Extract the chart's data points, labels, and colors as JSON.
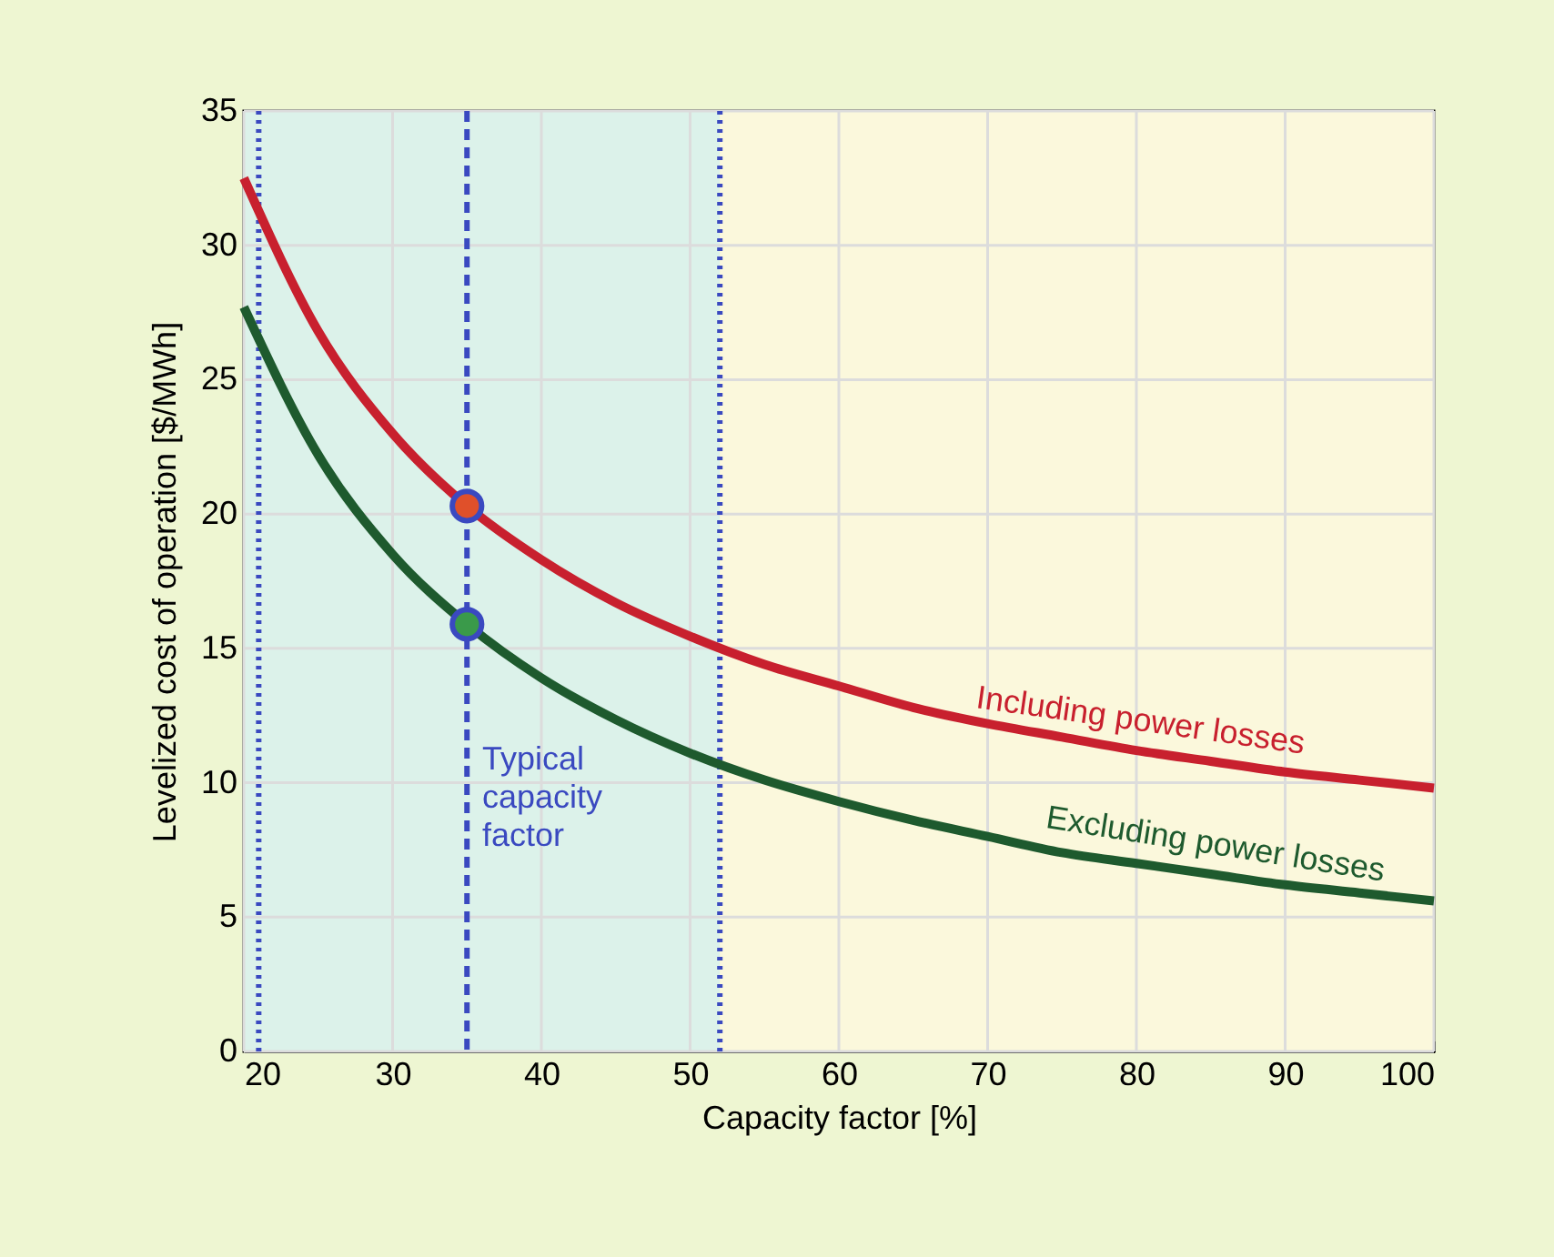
{
  "chart_data": {
    "type": "line",
    "xlabel": "Capacity factor [%]",
    "ylabel": "Levelized cost of operation [$/MWh]",
    "x": [
      20,
      25,
      30,
      35,
      40,
      45,
      50,
      55,
      60,
      65,
      70,
      75,
      80,
      85,
      90,
      95,
      100
    ],
    "series": [
      {
        "name": "Including power losses",
        "color": "#c8202e",
        "values": [
          32.5,
          26.8,
          23.0,
          20.3,
          18.3,
          16.7,
          15.45,
          14.4,
          13.6,
          12.8,
          12.2,
          11.7,
          11.2,
          10.8,
          10.4,
          10.1,
          9.8
        ]
      },
      {
        "name": "Excluding power losses",
        "color": "#1e5a2e",
        "values": [
          27.7,
          22.2,
          18.5,
          15.9,
          13.9,
          12.35,
          11.1,
          10.1,
          9.3,
          8.6,
          8.0,
          7.4,
          7.0,
          6.6,
          6.2,
          5.9,
          5.6
        ]
      },
      {
        "type": "scatter",
        "marker": "circle",
        "x": [
          35
        ],
        "color": "#e0502a",
        "values": [
          20.3
        ]
      },
      {
        "type": "scatter",
        "marker": "circle",
        "x": [
          35
        ],
        "color": "#3a9a4a",
        "values": [
          15.9
        ]
      }
    ],
    "xlim": [
      20,
      100
    ],
    "xticks": [
      20,
      30,
      40,
      50,
      60,
      70,
      80,
      90,
      100
    ],
    "ylim": [
      0,
      35
    ],
    "yticks": [
      0,
      5,
      10,
      15,
      20,
      25,
      30,
      35
    ],
    "grid": true,
    "bands": [
      {
        "axis": "x",
        "from": 20,
        "to": 52,
        "color": "#dcf2ea"
      },
      {
        "axis": "x",
        "from": 52,
        "to": 100,
        "color": "#fbf8dc"
      }
    ],
    "ref_lines": [
      {
        "axis": "x",
        "value": 21,
        "color": "#3a49c0",
        "line_style": "dotted"
      },
      {
        "axis": "x",
        "value": 35,
        "color": "#3a49c0",
        "line_style": "dashed"
      },
      {
        "axis": "x",
        "value": 52,
        "color": "#3a49c0",
        "line_style": "dotted"
      }
    ],
    "annotations": [
      "Typical\ncapacity\nfactor"
    ]
  }
}
